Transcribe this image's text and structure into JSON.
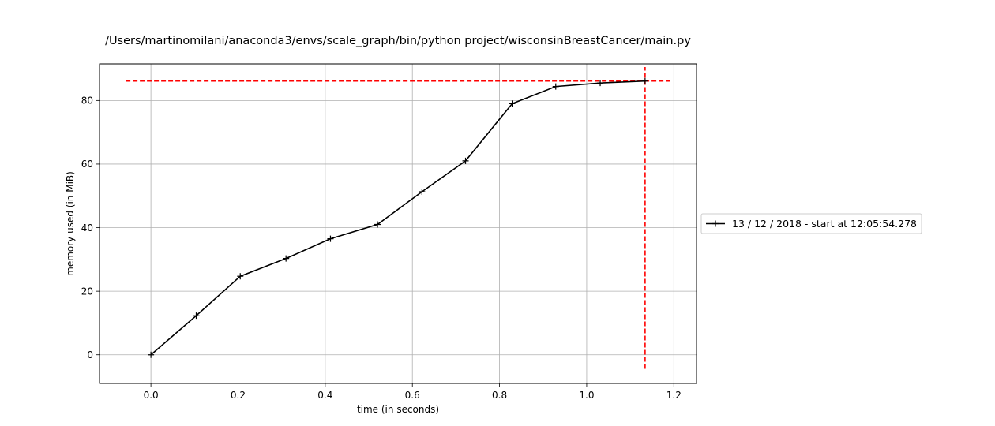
{
  "chart_data": {
    "type": "line",
    "title": "/Users/martinomilani/anaconda3/envs/scale_graph/bin/python project/wisconsinBreastCancer/main.py",
    "xlabel": "time (in seconds)",
    "ylabel": "memory used (in MiB)",
    "xlim": [
      -0.118,
      1.252
    ],
    "ylim": [
      -9,
      91.5
    ],
    "xticks": [
      0.0,
      0.2,
      0.4,
      0.6,
      0.8,
      1.0,
      1.2
    ],
    "xtick_labels": [
      "0.0",
      "0.2",
      "0.4",
      "0.6",
      "0.8",
      "1.0",
      "1.2"
    ],
    "yticks": [
      0,
      20,
      40,
      60,
      80
    ],
    "ytick_labels": [
      "0",
      "20",
      "40",
      "60",
      "80"
    ],
    "grid": true,
    "legend_position": "right-center-outside",
    "series": [
      {
        "name": "13 / 12 / 2018 - start at 12:05:54.278",
        "color": "#000000",
        "marker": "+",
        "x": [
          0.0,
          0.104,
          0.205,
          0.31,
          0.412,
          0.52,
          0.622,
          0.722,
          0.829,
          0.929,
          1.031,
          1.134
        ],
        "y": [
          0.0,
          12.3,
          24.7,
          30.3,
          36.5,
          41.0,
          51.3,
          61.0,
          79.0,
          84.4,
          85.5,
          86.1
        ]
      }
    ],
    "reference_lines": [
      {
        "orientation": "horizontal",
        "value": 86.1,
        "from": -0.058,
        "to": 1.192,
        "color": "#ff0000",
        "style": "dashed"
      },
      {
        "orientation": "vertical",
        "value": 1.134,
        "from": -4.4,
        "to": 90.5,
        "color": "#ff0000",
        "style": "dashed"
      }
    ]
  }
}
